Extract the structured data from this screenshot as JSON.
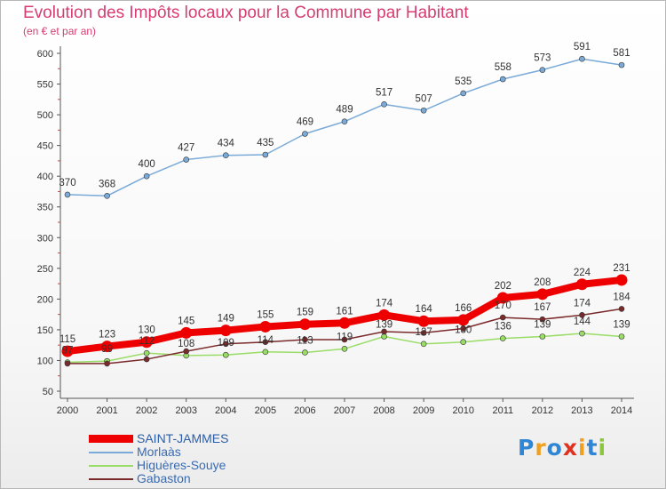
{
  "header": {
    "title": "Evolution des Impôts locaux pour la Commune par Habitant",
    "subtitle": "(en € et par an)"
  },
  "logo": {
    "text": "Proxiti",
    "letters": [
      "P",
      "r",
      "o",
      "x",
      "i",
      "t",
      "i"
    ],
    "colors": [
      "#2e86d4",
      "#f0a020",
      "#2e86d4",
      "#e03020",
      "#f0a020",
      "#2e86d4",
      "#8cc63f"
    ]
  },
  "chart_data": {
    "type": "line",
    "title": "Evolution des Impôts locaux pour la Commune par Habitant",
    "subtitle": "(en € et par an)",
    "xlabel": "",
    "ylabel": "",
    "x": [
      "2000",
      "2001",
      "2002",
      "2003",
      "2004",
      "2005",
      "2006",
      "2007",
      "2008",
      "2009",
      "2010",
      "2011",
      "2012",
      "2013",
      "2014"
    ],
    "ylim": [
      50,
      600
    ],
    "yticks": [
      50,
      100,
      150,
      200,
      250,
      300,
      350,
      400,
      450,
      500,
      550,
      600
    ],
    "grid": false,
    "legend_position": "bottom-left",
    "series": [
      {
        "name": "SAINT-JAMMES",
        "color": "#ee0000",
        "highlight": true,
        "values": [
          115,
          123,
          130,
          145,
          149,
          155,
          159,
          161,
          174,
          164,
          166,
          202,
          208,
          224,
          231
        ],
        "labels": [
          "115",
          "123",
          "130",
          "145",
          "149",
          "155",
          "159",
          "161",
          "174",
          "164",
          "166",
          "202",
          "208",
          "224",
          "231"
        ]
      },
      {
        "name": "Morlaàs",
        "color": "#7aaad8",
        "highlight": false,
        "values": [
          370,
          368,
          400,
          427,
          434,
          435,
          469,
          489,
          517,
          507,
          535,
          558,
          573,
          591,
          581
        ],
        "labels": [
          "370",
          "368",
          "400",
          "427",
          "434",
          "435",
          "469",
          "489",
          "517",
          "507",
          "535",
          "558",
          "573",
          "591",
          "581"
        ]
      },
      {
        "name": "Higuères-Souye",
        "color": "#99dd66",
        "highlight": false,
        "values": [
          97,
          99,
          112,
          108,
          109,
          114,
          113,
          119,
          139,
          127,
          130,
          136,
          139,
          144,
          139
        ],
        "labels": [
          "97",
          "99",
          "112",
          "108",
          "109",
          "114",
          "113",
          "119",
          "139",
          "127",
          "130",
          "136",
          "139",
          "144",
          "139"
        ]
      },
      {
        "name": "Gabaston",
        "color": "#7a2a2a",
        "highlight": false,
        "values": [
          95,
          95,
          102,
          115,
          127,
          130,
          134,
          134,
          147,
          145,
          152,
          170,
          167,
          174,
          184
        ],
        "labels": [
          "",
          "",
          "",
          "",
          "",
          "",
          "",
          "",
          "",
          "",
          "",
          "170",
          "167",
          "174",
          "184"
        ]
      }
    ]
  }
}
